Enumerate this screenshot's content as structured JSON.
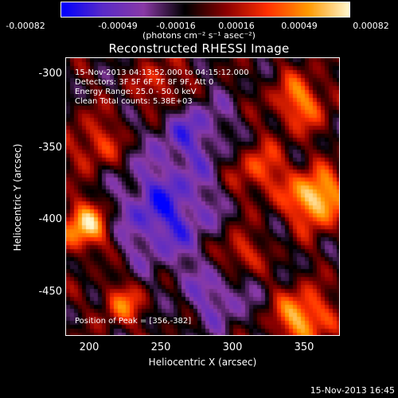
{
  "colorbar": {
    "ticks": [
      "-0.00082",
      "-0.00049",
      "-0.00016",
      "0.00016",
      "0.00049",
      "0.00082"
    ],
    "unit_label": "(photons cm⁻² s⁻¹ asec⁻²)",
    "colors": [
      "#0000ff",
      "#5a2bc8",
      "#8a3aa6",
      "#000000",
      "#8b0000",
      "#ff3000",
      "#ff9a00",
      "#fff8d0"
    ]
  },
  "title": "Reconstructed RHESSI Image",
  "info": {
    "time_range": "15-Nov-2013 04:13:52.000 to 04:15:12.000",
    "detectors": "Detectors: 3F 5F 6F 7F 8F 9F, Att 0",
    "energy": "Energy Range: 25.0 - 50.0 keV",
    "clean": "Clean     Total counts: 5.38E+03",
    "peak": "Position of Peak = [356,-382]"
  },
  "axes": {
    "x_label": "Heliocentric X (arcsec)",
    "y_label": "Heliocentric Y (arcsec)",
    "x_ticks": [
      "200",
      "250",
      "300",
      "350"
    ],
    "y_ticks": [
      "-300",
      "-350",
      "-400",
      "-450"
    ]
  },
  "timestamp": "15-Nov-2013 16:45"
}
